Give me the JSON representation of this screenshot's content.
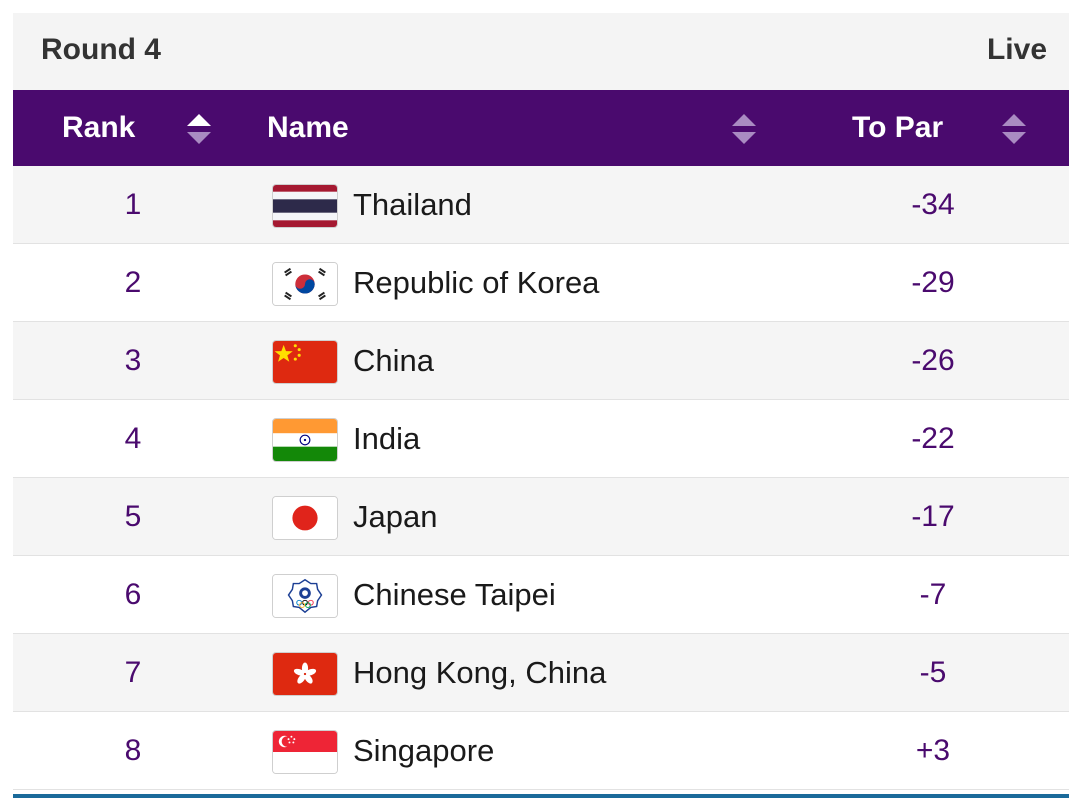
{
  "panel": {
    "round_title": "Round 4",
    "status": "Live"
  },
  "table": {
    "columns": {
      "rank": "Rank",
      "name": "Name",
      "to_par": "To Par"
    },
    "sort": {
      "rank": "ascending",
      "name": "none",
      "to_par": "none"
    },
    "rows": [
      {
        "rank": "1",
        "name": "Thailand",
        "to_par": "-34",
        "flag": "thailand-flag-icon"
      },
      {
        "rank": "2",
        "name": "Republic of Korea",
        "to_par": "-29",
        "flag": "korea-flag-icon"
      },
      {
        "rank": "3",
        "name": "China",
        "to_par": "-26",
        "flag": "china-flag-icon"
      },
      {
        "rank": "4",
        "name": "India",
        "to_par": "-22",
        "flag": "india-flag-icon"
      },
      {
        "rank": "5",
        "name": "Japan",
        "to_par": "-17",
        "flag": "japan-flag-icon"
      },
      {
        "rank": "6",
        "name": "Chinese Taipei",
        "to_par": "-7",
        "flag": "chinese-taipei-flag-icon"
      },
      {
        "rank": "7",
        "name": "Hong Kong, China",
        "to_par": "-5",
        "flag": "hong-kong-flag-icon"
      },
      {
        "rank": "8",
        "name": "Singapore",
        "to_par": "+3",
        "flag": "singapore-flag-icon"
      }
    ]
  },
  "colors": {
    "header_bg": "#4a0a6e",
    "accent_text": "#4a0a6e",
    "bottom_rule": "#1a6a9a"
  }
}
